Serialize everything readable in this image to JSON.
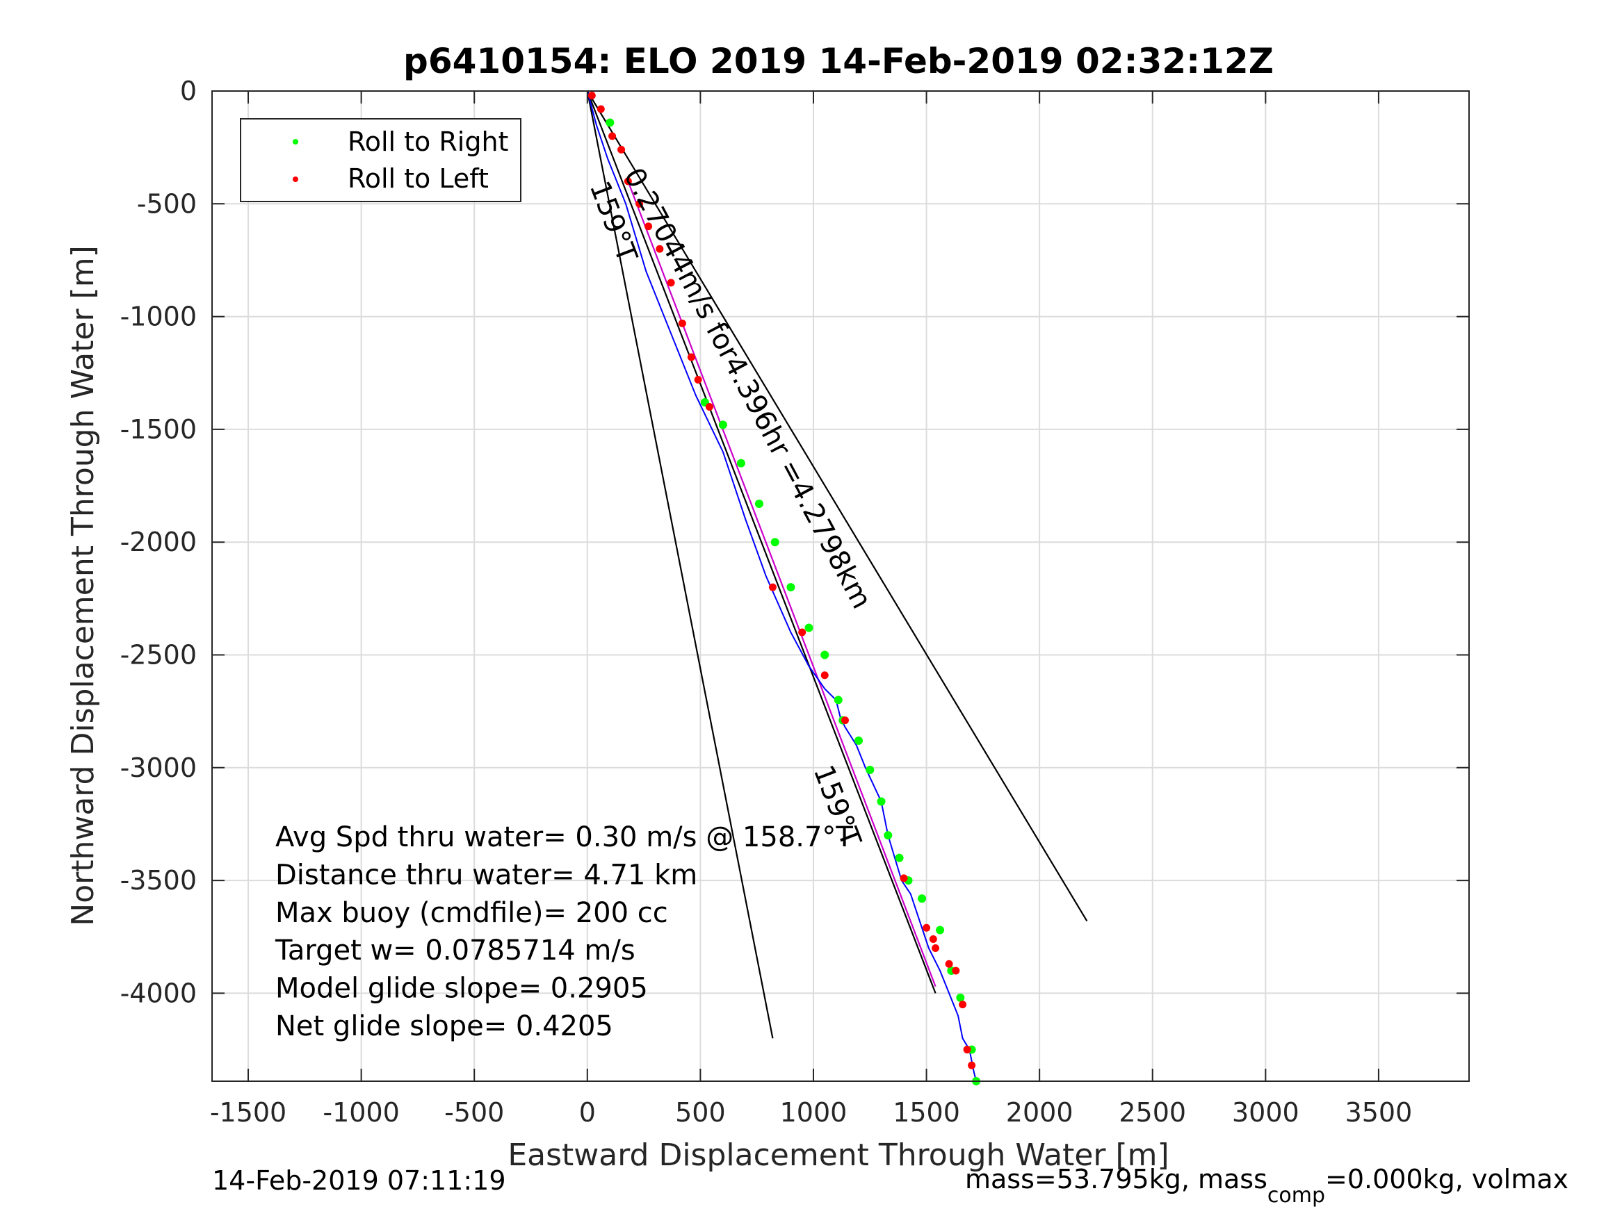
{
  "chart_data": {
    "type": "scatter",
    "title": "p6410154: ELO 2019 14-Feb-2019 02:32:12Z",
    "xlabel": "Eastward Displacement Through Water [m]",
    "ylabel": "Northward Displacement Through Water [m]",
    "xlim": [
      -1660,
      3900
    ],
    "ylim": [
      -4390,
      0
    ],
    "xticks": [
      -1500,
      -1000,
      -500,
      0,
      500,
      1000,
      1500,
      2000,
      2500,
      3000,
      3500
    ],
    "yticks": [
      0,
      -500,
      -1000,
      -1500,
      -2000,
      -2500,
      -3000,
      -3500,
      -4000
    ],
    "grid": true,
    "legend_position": "top-left",
    "legend": [
      {
        "label": "Roll to Right",
        "color": "#00ff00"
      },
      {
        "label": "Roll to Left",
        "color": "#ff0000"
      }
    ],
    "track": {
      "color": "#0000ff",
      "x": [
        0,
        40,
        90,
        170,
        260,
        380,
        480,
        600,
        700,
        790,
        900,
        980,
        1050,
        1100,
        1120,
        1140,
        1190,
        1230,
        1300,
        1330,
        1360,
        1390,
        1430,
        1470,
        1510,
        1560,
        1600,
        1620,
        1640,
        1660,
        1690,
        1700,
        1710,
        1720
      ],
      "y": [
        0,
        -150,
        -300,
        -500,
        -800,
        -1100,
        -1350,
        -1600,
        -1900,
        -2150,
        -2400,
        -2550,
        -2650,
        -2700,
        -2780,
        -2820,
        -2900,
        -3000,
        -3150,
        -3300,
        -3400,
        -3500,
        -3560,
        -3680,
        -3800,
        -3900,
        -4000,
        -4050,
        -4100,
        -4200,
        -4250,
        -4300,
        -4350,
        -4390
      ]
    },
    "roll_right_points": {
      "x": [
        100,
        520,
        600,
        680,
        760,
        830,
        900,
        980,
        1050,
        1110,
        1130,
        1200,
        1250,
        1300,
        1330,
        1380,
        1420,
        1480,
        1560,
        1610,
        1650,
        1700,
        1720
      ],
      "y": [
        -140,
        -1380,
        -1480,
        -1650,
        -1830,
        -2000,
        -2200,
        -2380,
        -2500,
        -2700,
        -2790,
        -2880,
        -3010,
        -3150,
        -3300,
        -3400,
        -3500,
        -3580,
        -3720,
        -3900,
        -4020,
        -4250,
        -4390
      ]
    },
    "roll_left_points": {
      "x": [
        20,
        60,
        110,
        150,
        180,
        230,
        270,
        320,
        370,
        420,
        460,
        490,
        540,
        820,
        950,
        1050,
        1140,
        1400,
        1500,
        1530,
        1540,
        1600,
        1630,
        1660,
        1680,
        1700
      ],
      "y": [
        -20,
        -80,
        -200,
        -260,
        -400,
        -500,
        -600,
        -700,
        -850,
        -1030,
        -1180,
        -1280,
        -1400,
        -2200,
        -2400,
        -2590,
        -2790,
        -3490,
        -3710,
        -3760,
        -3800,
        -3870,
        -3900,
        -4050,
        -4250,
        -4320
      ]
    },
    "heading_lines": [
      {
        "color": "#000000",
        "x": [
          0,
          820
        ],
        "y": [
          0,
          -4200
        ]
      },
      {
        "color": "#000000",
        "x": [
          0,
          2210
        ],
        "y": [
          0,
          -3680
        ]
      },
      {
        "color": "#000000",
        "x": [
          0,
          1540
        ],
        "y": [
          0,
          -4000
        ]
      },
      {
        "color": "#cc00cc",
        "x": [
          180,
          1540
        ],
        "y": [
          -400,
          -3970
        ]
      }
    ],
    "line_labels": [
      {
        "text": "0.27044m/s for4.396hr =4.2798km",
        "x": 160,
        "y": -370,
        "rotation": 62
      },
      {
        "text": "159°T",
        "x": 10,
        "y": -420,
        "rotation": 69
      },
      {
        "text": "159°T",
        "x": 1000,
        "y": -3010,
        "rotation": 69
      }
    ],
    "annotations": [
      "Avg Spd thru water=  0.30 m/s @ 158.7°T",
      "Distance thru water=  4.71 km",
      "Max buoy (cmdfile)= 200 cc",
      "Target w= 0.0785714 m/s",
      "Model glide slope= 0.2905",
      "Net glide slope= 0.4205"
    ],
    "footer_left": "14-Feb-2019 07:11:19",
    "footer_right_a": "mass=53.795kg, mass",
    "footer_right_sub": "comp",
    "footer_right_b": "=0.000kg, volmax"
  }
}
